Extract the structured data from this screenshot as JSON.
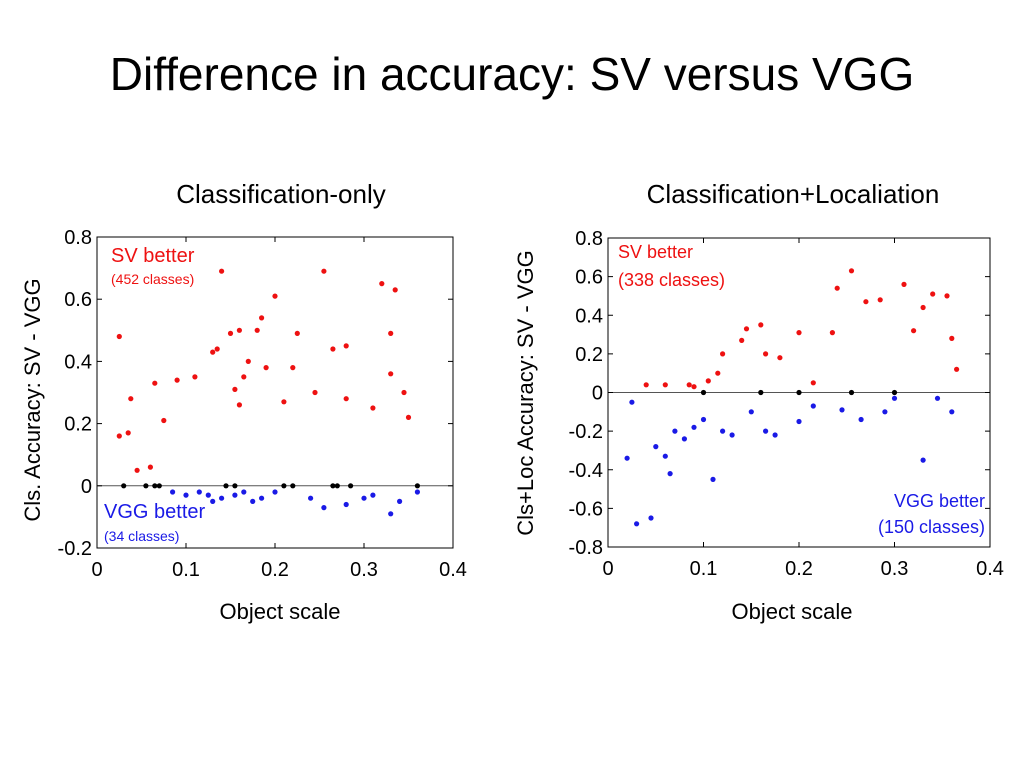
{
  "slide": {
    "title": "Difference in accuracy: SV versus VGG"
  },
  "colors": {
    "sv": "#ee1111",
    "vgg": "#1a1ae6",
    "tie": "#000000",
    "axis": "#000000",
    "zero_line": "#555555"
  },
  "chart_data": [
    {
      "type": "scatter",
      "title": "Classification-only",
      "xlabel": "Object scale",
      "ylabel": "Cls. Accuracy: SV - VGG",
      "xlim": [
        0,
        0.4
      ],
      "ylim": [
        -0.2,
        0.8
      ],
      "x_ticks": [
        "0",
        "0.1",
        "0.2",
        "0.3",
        "0.4"
      ],
      "y_ticks": [
        "-0.2",
        "0",
        "0.2",
        "0.4",
        "0.6",
        "0.8"
      ],
      "grid": false,
      "reference_line_y": 0,
      "annotations": [
        {
          "text": "SV better",
          "sub": "(452 classes)",
          "group": "sv"
        },
        {
          "text": "VGG better",
          "sub": "(34 classes)",
          "group": "vgg"
        }
      ],
      "series": [
        {
          "group": "sv",
          "count": 452,
          "points": [
            [
              0.025,
              0.48
            ],
            [
              0.038,
              0.28
            ],
            [
              0.035,
              0.17
            ],
            [
              0.025,
              0.16
            ],
            [
              0.045,
              0.05
            ],
            [
              0.06,
              0.06
            ],
            [
              0.065,
              0.33
            ],
            [
              0.075,
              0.21
            ],
            [
              0.09,
              0.34
            ],
            [
              0.11,
              0.35
            ],
            [
              0.13,
              0.43
            ],
            [
              0.135,
              0.44
            ],
            [
              0.14,
              0.69
            ],
            [
              0.15,
              0.49
            ],
            [
              0.16,
              0.5
            ],
            [
              0.17,
              0.4
            ],
            [
              0.18,
              0.5
            ],
            [
              0.185,
              0.54
            ],
            [
              0.2,
              0.61
            ],
            [
              0.225,
              0.49
            ],
            [
              0.255,
              0.69
            ],
            [
              0.265,
              0.44
            ],
            [
              0.28,
              0.45
            ],
            [
              0.32,
              0.65
            ],
            [
              0.335,
              0.63
            ],
            [
              0.33,
              0.49
            ],
            [
              0.33,
              0.36
            ],
            [
              0.155,
              0.31
            ],
            [
              0.165,
              0.35
            ],
            [
              0.19,
              0.38
            ],
            [
              0.22,
              0.38
            ],
            [
              0.16,
              0.26
            ],
            [
              0.21,
              0.27
            ],
            [
              0.245,
              0.3
            ],
            [
              0.28,
              0.28
            ],
            [
              0.31,
              0.25
            ],
            [
              0.345,
              0.3
            ],
            [
              0.35,
              0.22
            ]
          ]
        },
        {
          "group": "vgg",
          "count": 34,
          "points": [
            [
              0.085,
              -0.02
            ],
            [
              0.1,
              -0.03
            ],
            [
              0.115,
              -0.02
            ],
            [
              0.125,
              -0.03
            ],
            [
              0.13,
              -0.05
            ],
            [
              0.14,
              -0.04
            ],
            [
              0.155,
              -0.03
            ],
            [
              0.165,
              -0.02
            ],
            [
              0.175,
              -0.05
            ],
            [
              0.185,
              -0.04
            ],
            [
              0.2,
              -0.02
            ],
            [
              0.24,
              -0.04
            ],
            [
              0.255,
              -0.07
            ],
            [
              0.28,
              -0.06
            ],
            [
              0.3,
              -0.04
            ],
            [
              0.31,
              -0.03
            ],
            [
              0.33,
              -0.09
            ],
            [
              0.34,
              -0.05
            ],
            [
              0.36,
              -0.02
            ]
          ]
        },
        {
          "group": "tie",
          "points": [
            [
              0.03,
              0.0
            ],
            [
              0.055,
              0.0
            ],
            [
              0.065,
              0.0
            ],
            [
              0.07,
              0.0
            ],
            [
              0.145,
              0.0
            ],
            [
              0.155,
              0.0
            ],
            [
              0.21,
              0.0
            ],
            [
              0.22,
              0.0
            ],
            [
              0.265,
              0.0
            ],
            [
              0.27,
              0.0
            ],
            [
              0.285,
              0.0
            ],
            [
              0.36,
              0.0
            ]
          ]
        }
      ]
    },
    {
      "type": "scatter",
      "title": "Classification+Localiation",
      "xlabel": "Object scale",
      "ylabel": "Cls+Loc Accuracy: SV - VGG",
      "xlim": [
        0,
        0.4
      ],
      "ylim": [
        -0.8,
        0.8
      ],
      "x_ticks": [
        "0",
        "0.1",
        "0.2",
        "0.3",
        "0.4"
      ],
      "y_ticks": [
        "-0.8",
        "-0.6",
        "-0.4",
        "-0.2",
        "0",
        "0.2",
        "0.4",
        "0.6",
        "0.8"
      ],
      "grid": false,
      "reference_line_y": 0,
      "annotations": [
        {
          "text": "SV better",
          "sub": "(338 classes)",
          "group": "sv"
        },
        {
          "text": "VGG better",
          "sub": "(150 classes)",
          "group": "vgg"
        }
      ],
      "series": [
        {
          "group": "sv",
          "count": 338,
          "points": [
            [
              0.04,
              0.04
            ],
            [
              0.06,
              0.04
            ],
            [
              0.085,
              0.04
            ],
            [
              0.09,
              0.03
            ],
            [
              0.105,
              0.06
            ],
            [
              0.115,
              0.1
            ],
            [
              0.12,
              0.2
            ],
            [
              0.14,
              0.27
            ],
            [
              0.145,
              0.33
            ],
            [
              0.16,
              0.35
            ],
            [
              0.165,
              0.2
            ],
            [
              0.2,
              0.31
            ],
            [
              0.215,
              0.05
            ],
            [
              0.235,
              0.31
            ],
            [
              0.24,
              0.54
            ],
            [
              0.255,
              0.63
            ],
            [
              0.27,
              0.47
            ],
            [
              0.285,
              0.48
            ],
            [
              0.31,
              0.56
            ],
            [
              0.33,
              0.44
            ],
            [
              0.34,
              0.51
            ],
            [
              0.355,
              0.5
            ],
            [
              0.36,
              0.28
            ],
            [
              0.365,
              0.12
            ],
            [
              0.32,
              0.32
            ],
            [
              0.18,
              0.18
            ]
          ]
        },
        {
          "group": "vgg",
          "count": 150,
          "points": [
            [
              0.02,
              -0.34
            ],
            [
              0.025,
              -0.05
            ],
            [
              0.03,
              -0.68
            ],
            [
              0.045,
              -0.65
            ],
            [
              0.05,
              -0.28
            ],
            [
              0.06,
              -0.33
            ],
            [
              0.065,
              -0.42
            ],
            [
              0.07,
              -0.2
            ],
            [
              0.08,
              -0.24
            ],
            [
              0.09,
              -0.18
            ],
            [
              0.1,
              -0.14
            ],
            [
              0.11,
              -0.45
            ],
            [
              0.12,
              -0.2
            ],
            [
              0.13,
              -0.22
            ],
            [
              0.15,
              -0.1
            ],
            [
              0.165,
              -0.2
            ],
            [
              0.175,
              -0.22
            ],
            [
              0.2,
              -0.15
            ],
            [
              0.215,
              -0.07
            ],
            [
              0.245,
              -0.09
            ],
            [
              0.265,
              -0.14
            ],
            [
              0.29,
              -0.1
            ],
            [
              0.33,
              -0.35
            ],
            [
              0.345,
              -0.03
            ],
            [
              0.36,
              -0.1
            ],
            [
              0.3,
              -0.03
            ]
          ]
        },
        {
          "group": "tie",
          "points": [
            [
              0.1,
              0.0
            ],
            [
              0.16,
              0.0
            ],
            [
              0.2,
              0.0
            ],
            [
              0.255,
              0.0
            ],
            [
              0.3,
              0.0
            ]
          ]
        }
      ]
    }
  ]
}
